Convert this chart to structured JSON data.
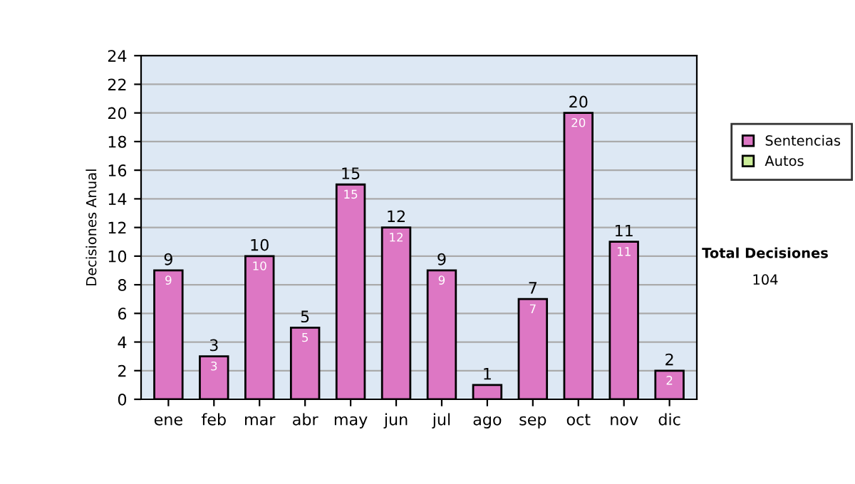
{
  "chart_data": {
    "type": "bar",
    "ylabel": "Decisiones Anual",
    "categories": [
      "ene",
      "feb",
      "mar",
      "abr",
      "may",
      "jun",
      "jul",
      "ago",
      "sep",
      "oct",
      "nov",
      "dic"
    ],
    "series": [
      {
        "name": "Sentencias",
        "color": "#dd77c4",
        "values": [
          9,
          3,
          10,
          5,
          15,
          12,
          9,
          1,
          7,
          20,
          11,
          2
        ],
        "value_labels": [
          "9",
          "3",
          "10",
          "5",
          "15",
          "12",
          "9",
          null,
          "7",
          "20",
          "11",
          "2"
        ]
      },
      {
        "name": "Autos",
        "color": "#ccee99",
        "values": [
          null,
          null,
          null,
          null,
          null,
          null,
          null,
          null,
          null,
          null,
          null,
          null
        ]
      }
    ],
    "stacked": true,
    "totals": [
      "9",
      "3",
      "10",
      "5",
      "15",
      "12",
      "9",
      "1",
      "7",
      "20",
      "11",
      "2"
    ],
    "ylim": [
      0,
      24
    ],
    "yticks": [
      0,
      2,
      4,
      6,
      8,
      10,
      12,
      14,
      16,
      18,
      20,
      22,
      24
    ],
    "grid": "y",
    "legend": "right",
    "annotations": [
      "Total Decisiones",
      "104"
    ]
  }
}
